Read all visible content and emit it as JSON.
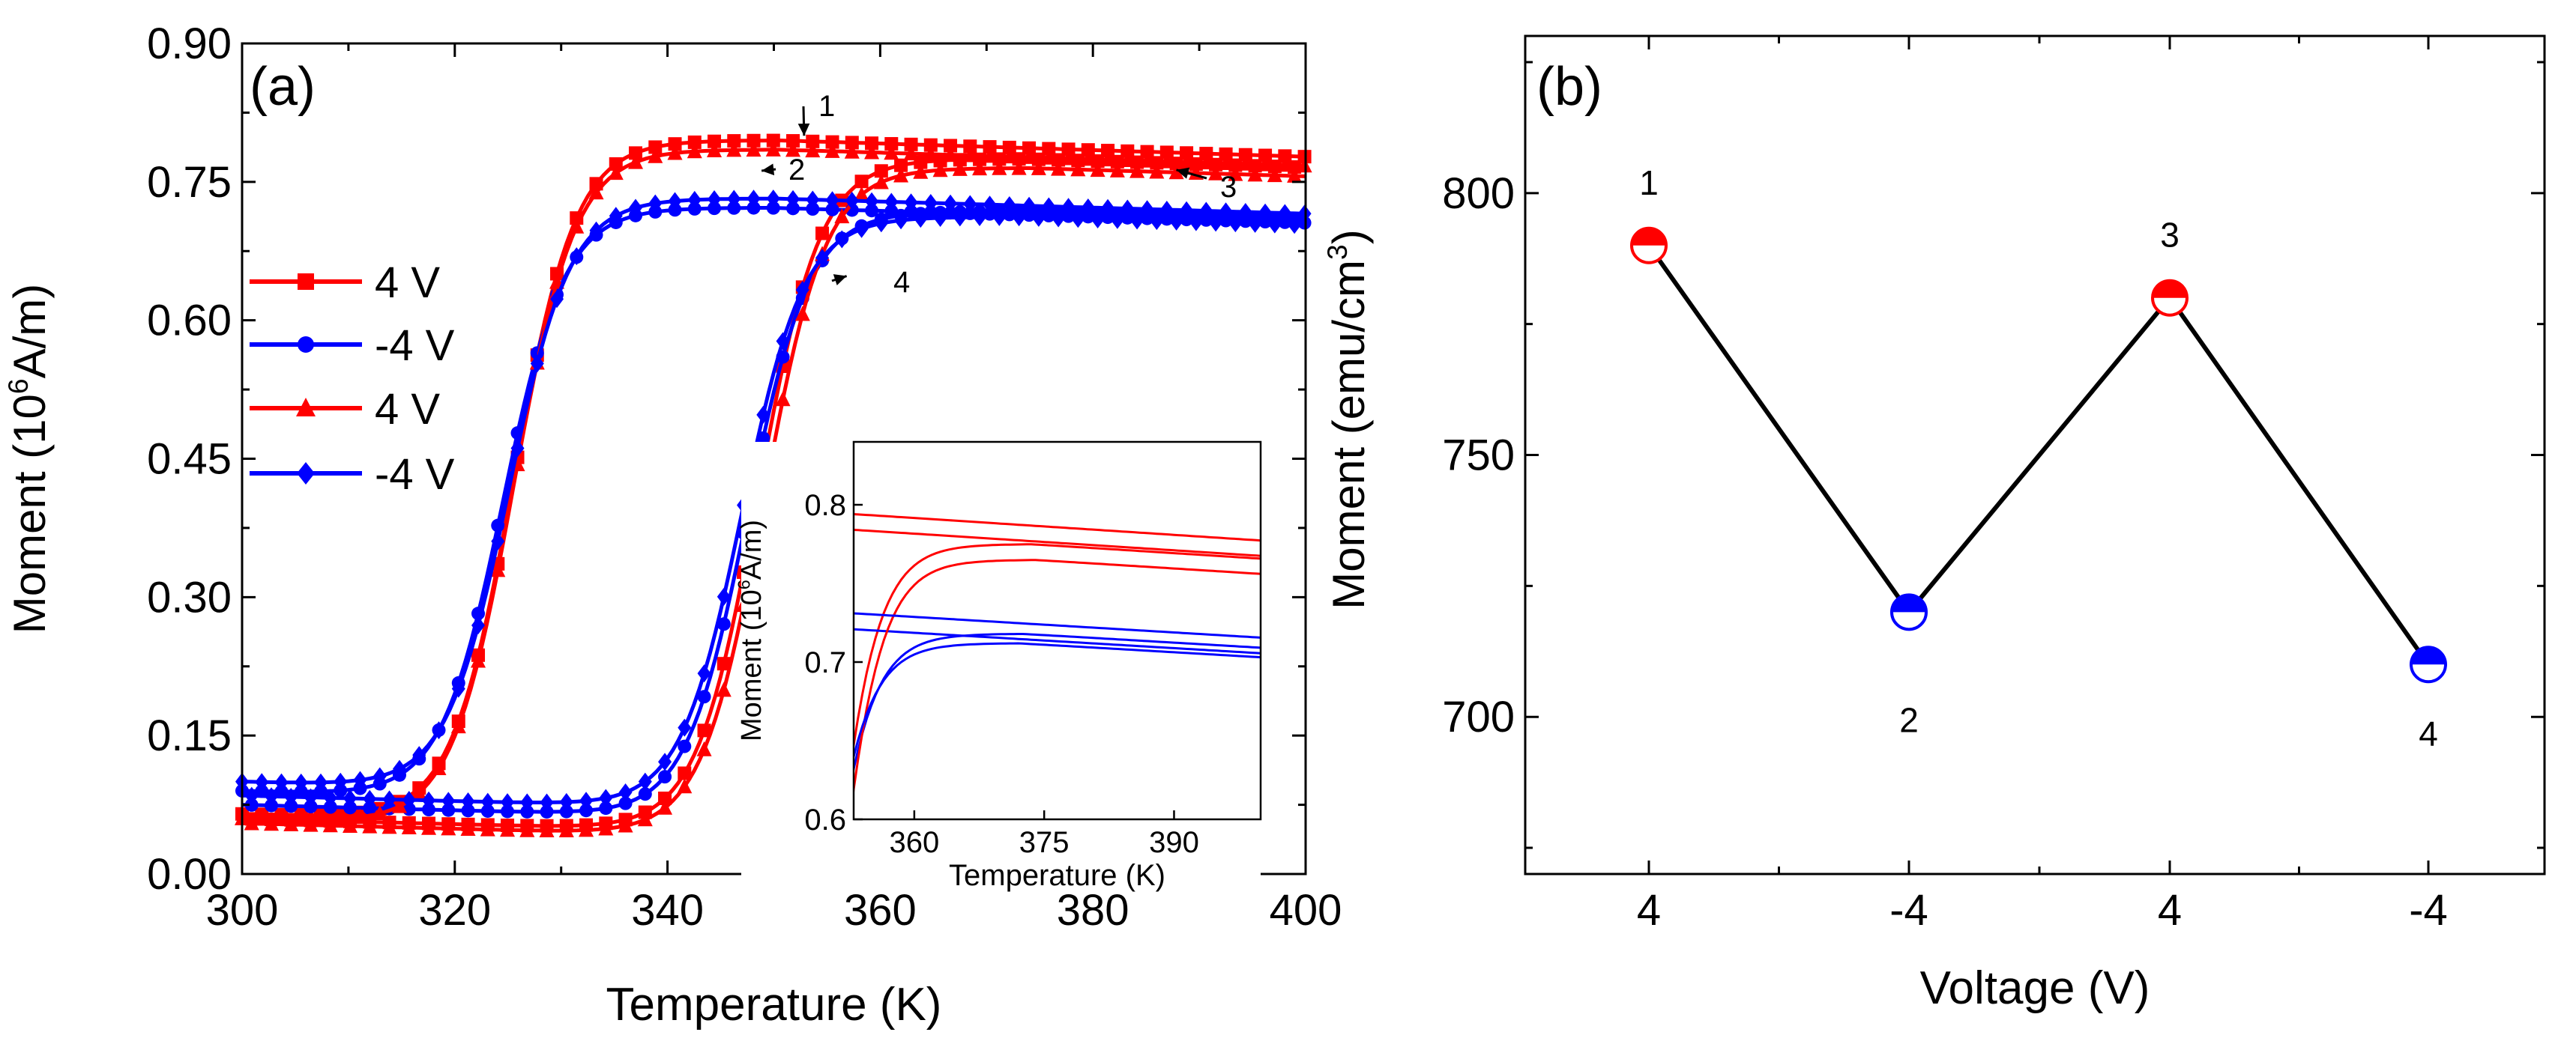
{
  "colors": {
    "red": "#ff0000",
    "blue": "#0000ff",
    "black": "#000000"
  },
  "chart_data": [
    {
      "type": "line",
      "panel_label": "(a)",
      "xlabel": "Temperature (K)",
      "ylabel_prefix": "Moment (10",
      "ylabel_exp": "6",
      "ylabel_suffix": "A/m)",
      "xlim": [
        300,
        400
      ],
      "ylim": [
        0,
        0.9
      ],
      "xticks": [
        "300",
        "320",
        "340",
        "360",
        "380",
        "400"
      ],
      "yticks": [
        "0.00",
        "0.15",
        "0.30",
        "0.45",
        "0.60",
        "0.75",
        "0.90"
      ],
      "series": [
        {
          "name": "4 V",
          "color": "#ff0000",
          "marker": "square",
          "sat_cool": 0.795,
          "sat_heat": 0.775,
          "tc_cool": 325.5,
          "tc_heat": 348.5,
          "low_cool": 0.065,
          "low_heat": 0.06
        },
        {
          "name": "-4 V",
          "color": "#0000ff",
          "marker": "circle",
          "sat_cool": 0.722,
          "sat_heat": 0.718,
          "tc_cool": 324.5,
          "tc_heat": 347.5,
          "low_cool": 0.09,
          "low_heat": 0.075
        },
        {
          "name": "4 V",
          "color": "#ff0000",
          "marker": "triangle",
          "sat_cool": 0.785,
          "sat_heat": 0.765,
          "tc_cool": 325.5,
          "tc_heat": 349.0,
          "low_cool": 0.06,
          "low_heat": 0.055
        },
        {
          "name": "-4 V",
          "color": "#0000ff",
          "marker": "diamond",
          "sat_cool": 0.732,
          "sat_heat": 0.712,
          "tc_cool": 325.0,
          "tc_heat": 347.0,
          "low_cool": 0.1,
          "low_heat": 0.085
        }
      ],
      "annotations": [
        {
          "label": "1",
          "x": 352,
          "y": 0.8
        },
        {
          "label": "2",
          "x": 348,
          "y": 0.762
        },
        {
          "label": "3",
          "x": 387,
          "y": 0.763
        },
        {
          "label": "4",
          "x": 356,
          "y": 0.648
        }
      ],
      "inset": {
        "xlabel": "Temperature (K)",
        "ylabel_prefix": "Moment (10",
        "ylabel_exp": "6",
        "ylabel_suffix": "A/m)",
        "xlim": [
          353,
          400
        ],
        "ylim": [
          0.6,
          0.84
        ],
        "xticks": [
          "360",
          "375",
          "390"
        ],
        "yticks": [
          "0.6",
          "0.7",
          "0.8"
        ]
      }
    },
    {
      "type": "scatter",
      "panel_label": "(b)",
      "xlabel": "Voltage (V)",
      "ylabel_prefix": "Moment (emu/cm",
      "ylabel_exp": "3",
      "ylabel_suffix": ")",
      "ylim": [
        670,
        830
      ],
      "yticks": [
        "700",
        "750",
        "800"
      ],
      "categories": [
        "4",
        "-4",
        "4",
        "-4"
      ],
      "values": [
        790,
        720,
        780,
        710
      ],
      "point_labels": [
        "1",
        "2",
        "3",
        "4"
      ],
      "point_colors": [
        "#ff0000",
        "#0000ff",
        "#ff0000",
        "#0000ff"
      ]
    }
  ]
}
